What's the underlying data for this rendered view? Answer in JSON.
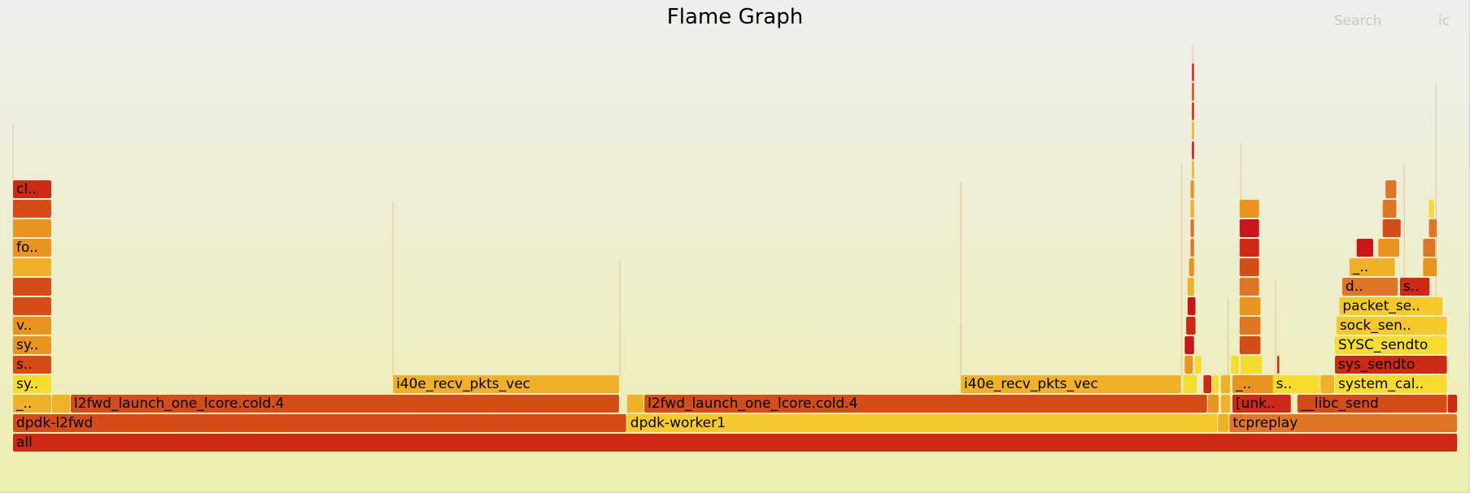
{
  "controls": {
    "search_label": "Search",
    "ignore_case_label": "ic"
  },
  "colors": {
    "red": "#cc2a14",
    "dark_red": "#c8161a",
    "orange_red": "#d44c18",
    "orange": "#df7526",
    "amber": "#e8941f",
    "gold": "#efb02a",
    "yellow": "#f3c92c",
    "light_yellow": "#f5dc2f"
  },
  "chart_data": {
    "type": "flame",
    "title": "Flame Graph",
    "x_total": 1000,
    "frames": [
      {
        "label": "all",
        "depth": 0,
        "start": 0,
        "width": 1000,
        "color": "red"
      },
      {
        "label": "dpdk-l2fwd",
        "depth": 1,
        "start": 0,
        "width": 425,
        "color": "orange_red"
      },
      {
        "label": "dpdk-worker1",
        "depth": 1,
        "start": 425,
        "width": 409,
        "color": "yellow"
      },
      {
        "label": "",
        "depth": 1,
        "start": 834,
        "width": 8,
        "color": "gold"
      },
      {
        "label": "tcpreplay",
        "depth": 1,
        "start": 842,
        "width": 158,
        "color": "orange"
      },
      {
        "label": "_..",
        "depth": 2,
        "start": 0,
        "width": 27,
        "color": "gold"
      },
      {
        "label": "",
        "depth": 2,
        "start": 27,
        "width": 13,
        "color": "gold"
      },
      {
        "label": "l2fwd_launch_one_lcore.cold.4",
        "depth": 2,
        "start": 40,
        "width": 380,
        "color": "orange_red"
      },
      {
        "label": "",
        "depth": 2,
        "start": 425,
        "width": 12,
        "color": "gold"
      },
      {
        "label": "l2fwd_launch_one_lcore.cold.4",
        "depth": 2,
        "start": 437,
        "width": 390,
        "color": "orange_red"
      },
      {
        "label": "",
        "depth": 2,
        "start": 827,
        "width": 8,
        "color": "amber"
      },
      {
        "label": "",
        "depth": 2,
        "start": 836,
        "width": 7,
        "color": "gold"
      },
      {
        "label": "[unk..",
        "depth": 2,
        "start": 844,
        "width": 41,
        "color": "red"
      },
      {
        "label": "__libc_send",
        "depth": 2,
        "start": 889,
        "width": 104,
        "color": "orange_red"
      },
      {
        "label": "",
        "depth": 2,
        "start": 993,
        "width": 7,
        "color": "red"
      },
      {
        "label": "sy..",
        "depth": 3,
        "start": 0,
        "width": 27,
        "color": "light_yellow"
      },
      {
        "label": "i40e_recv_pkts_vec",
        "depth": 3,
        "start": 263,
        "width": 157,
        "color": "gold"
      },
      {
        "label": "i40e_recv_pkts_vec",
        "depth": 3,
        "start": 656,
        "width": 153,
        "color": "gold"
      },
      {
        "label": "",
        "depth": 3,
        "start": 810,
        "width": 10,
        "color": "light_yellow"
      },
      {
        "label": "",
        "depth": 3,
        "start": 824,
        "width": 6,
        "color": "red"
      },
      {
        "label": "",
        "depth": 3,
        "start": 830,
        "width": 5,
        "color": "light_yellow"
      },
      {
        "label": "",
        "depth": 3,
        "start": 836,
        "width": 7,
        "color": "gold"
      },
      {
        "label": "_..",
        "depth": 3,
        "start": 844,
        "width": 41,
        "color": "amber"
      },
      {
        "label": "s..",
        "depth": 3,
        "start": 872,
        "width": 33,
        "color": "light_yellow"
      },
      {
        "label": "",
        "depth": 3,
        "start": 905,
        "width": 10,
        "color": "gold"
      },
      {
        "label": "system_cal..",
        "depth": 3,
        "start": 915,
        "width": 78,
        "color": "light_yellow"
      },
      {
        "label": "s..",
        "depth": 4,
        "start": 0,
        "width": 27,
        "color": "orange_red"
      },
      {
        "label": "",
        "depth": 4,
        "start": 811,
        "width": 6,
        "color": "amber"
      },
      {
        "label": "",
        "depth": 4,
        "start": 818,
        "width": 5,
        "color": "light_yellow"
      },
      {
        "label": "",
        "depth": 4,
        "start": 843,
        "width": 6,
        "color": "light_yellow"
      },
      {
        "label": "",
        "depth": 4,
        "start": 850,
        "width": 15,
        "color": "light_yellow"
      },
      {
        "label": "",
        "depth": 4,
        "start": 875,
        "width": 2,
        "color": "red"
      },
      {
        "label": "sys_sendto",
        "depth": 4,
        "start": 915,
        "width": 78,
        "color": "red"
      },
      {
        "label": "sy..",
        "depth": 5,
        "start": 0,
        "width": 27,
        "color": "amber"
      },
      {
        "label": "",
        "depth": 5,
        "start": 811,
        "width": 7,
        "color": "dark_red"
      },
      {
        "label": "",
        "depth": 5,
        "start": 849,
        "width": 15,
        "color": "orange_red"
      },
      {
        "label": "SYSC_sendto",
        "depth": 5,
        "start": 915,
        "width": 78,
        "color": "light_yellow"
      },
      {
        "label": "v..",
        "depth": 6,
        "start": 0,
        "width": 27,
        "color": "amber"
      },
      {
        "label": "",
        "depth": 6,
        "start": 812,
        "width": 7,
        "color": "red"
      },
      {
        "label": "",
        "depth": 6,
        "start": 849,
        "width": 15,
        "color": "orange"
      },
      {
        "label": "sock_sen..",
        "depth": 6,
        "start": 916,
        "width": 77,
        "color": "yellow"
      },
      {
        "label": "",
        "depth": 7,
        "start": 0,
        "width": 27,
        "color": "orange_red"
      },
      {
        "label": "",
        "depth": 7,
        "start": 813,
        "width": 6,
        "color": "dark_red"
      },
      {
        "label": "",
        "depth": 7,
        "start": 849,
        "width": 15,
        "color": "amber"
      },
      {
        "label": "packet_se..",
        "depth": 7,
        "start": 918,
        "width": 72,
        "color": "yellow"
      },
      {
        "label": "",
        "depth": 8,
        "start": 0,
        "width": 27,
        "color": "orange_red"
      },
      {
        "label": "",
        "depth": 8,
        "start": 813,
        "width": 5,
        "color": "gold"
      },
      {
        "label": "",
        "depth": 8,
        "start": 849,
        "width": 14,
        "color": "orange"
      },
      {
        "label": "d..",
        "depth": 8,
        "start": 920,
        "width": 39,
        "color": "orange"
      },
      {
        "label": "s..",
        "depth": 8,
        "start": 960,
        "width": 21,
        "color": "red"
      },
      {
        "label": "",
        "depth": 9,
        "start": 0,
        "width": 27,
        "color": "gold"
      },
      {
        "label": "",
        "depth": 9,
        "start": 814,
        "width": 4,
        "color": "amber"
      },
      {
        "label": "",
        "depth": 9,
        "start": 849,
        "width": 14,
        "color": "orange_red"
      },
      {
        "label": "_..",
        "depth": 9,
        "start": 925,
        "width": 32,
        "color": "gold"
      },
      {
        "label": "",
        "depth": 9,
        "start": 976,
        "width": 10,
        "color": "amber"
      },
      {
        "label": "fo..",
        "depth": 10,
        "start": 0,
        "width": 27,
        "color": "amber"
      },
      {
        "label": "",
        "depth": 10,
        "start": 815,
        "width": 3,
        "color": "orange"
      },
      {
        "label": "",
        "depth": 10,
        "start": 849,
        "width": 14,
        "color": "red"
      },
      {
        "label": "",
        "depth": 10,
        "start": 930,
        "width": 12,
        "color": "dark_red"
      },
      {
        "label": "",
        "depth": 10,
        "start": 945,
        "width": 15,
        "color": "amber"
      },
      {
        "label": "",
        "depth": 10,
        "start": 976,
        "width": 9,
        "color": "orange"
      },
      {
        "label": "",
        "depth": 11,
        "start": 0,
        "width": 27,
        "color": "amber"
      },
      {
        "label": "",
        "depth": 11,
        "start": 815,
        "width": 3,
        "color": "orange"
      },
      {
        "label": "",
        "depth": 11,
        "start": 849,
        "width": 14,
        "color": "dark_red"
      },
      {
        "label": "",
        "depth": 11,
        "start": 948,
        "width": 13,
        "color": "orange_red"
      },
      {
        "label": "",
        "depth": 11,
        "start": 980,
        "width": 6,
        "color": "orange"
      },
      {
        "label": "",
        "depth": 12,
        "start": 0,
        "width": 27,
        "color": "orange_red"
      },
      {
        "label": "",
        "depth": 12,
        "start": 815,
        "width": 3,
        "color": "gold"
      },
      {
        "label": "",
        "depth": 12,
        "start": 849,
        "width": 14,
        "color": "amber"
      },
      {
        "label": "",
        "depth": 12,
        "start": 948,
        "width": 10,
        "color": "orange"
      },
      {
        "label": "",
        "depth": 12,
        "start": 980,
        "width": 4,
        "color": "light_yellow"
      },
      {
        "label": "cl..",
        "depth": 13,
        "start": 0,
        "width": 27,
        "color": "red"
      },
      {
        "label": "",
        "depth": 13,
        "start": 815,
        "width": 3,
        "color": "amber"
      },
      {
        "label": "",
        "depth": 13,
        "start": 950,
        "width": 8,
        "color": "orange"
      },
      {
        "label": "",
        "depth": 14,
        "start": 816,
        "width": 2,
        "color": "gold"
      },
      {
        "label": "",
        "depth": 15,
        "start": 816,
        "width": 2,
        "color": "dark_red"
      },
      {
        "label": "",
        "depth": 16,
        "start": 816,
        "width": 2,
        "color": "gold"
      },
      {
        "label": "",
        "depth": 17,
        "start": 816,
        "width": 2,
        "color": "red"
      },
      {
        "label": "",
        "depth": 18,
        "start": 816,
        "width": 2,
        "color": "orange_red"
      },
      {
        "label": "",
        "depth": 19,
        "start": 816,
        "width": 2,
        "color": "red"
      }
    ],
    "slivers": [
      {
        "x": 0,
        "depth_top": 16
      },
      {
        "x": 263,
        "depth_top": 12
      },
      {
        "x": 420,
        "depth_top": 9
      },
      {
        "x": 656,
        "depth_top": 13
      },
      {
        "x": 809,
        "depth_top": 14
      },
      {
        "x": 816.5,
        "depth_top": 20
      },
      {
        "x": 841,
        "depth_top": 7
      },
      {
        "x": 850,
        "depth_top": 15
      },
      {
        "x": 874,
        "depth_top": 8
      },
      {
        "x": 963,
        "depth_top": 14
      },
      {
        "x": 985,
        "depth_top": 18
      }
    ]
  }
}
